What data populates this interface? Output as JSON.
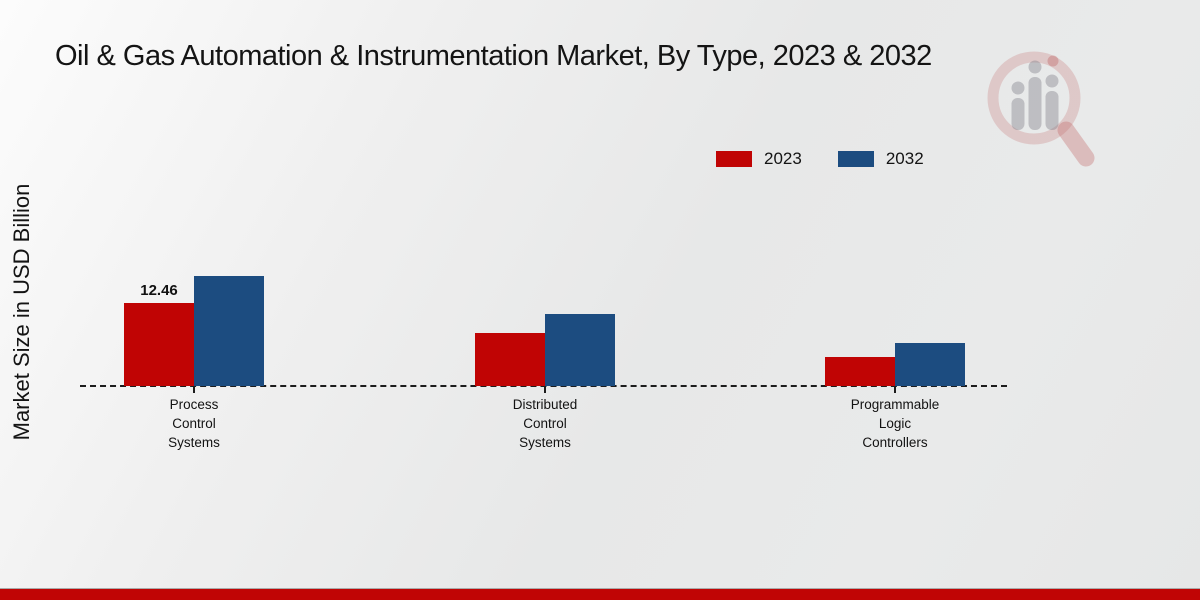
{
  "title": "Oil & Gas Automation & Instrumentation Market, By Type, 2023 & 2032",
  "y_axis_label": "Market Size in USD Billion",
  "chart_data": {
    "type": "bar",
    "categories": [
      "Process Control Systems",
      "Distributed Control Systems",
      "Programmable Logic Controllers"
    ],
    "category_lines": [
      [
        "Process",
        "Control",
        "Systems"
      ],
      [
        "Distributed",
        "Control",
        "Systems"
      ],
      [
        "Programmable",
        "Logic",
        "Controllers"
      ]
    ],
    "series": [
      {
        "name": "2023",
        "color": "#c00404",
        "values": [
          12.46,
          7.9,
          4.4
        ]
      },
      {
        "name": "2032",
        "color": "#1c4c80",
        "values": [
          16.5,
          10.8,
          6.5
        ]
      }
    ],
    "data_labels": [
      {
        "series": 0,
        "index": 0,
        "text": "12.46"
      }
    ],
    "title": "Oil & Gas Automation & Instrumentation Market, By Type, 2023 & 2032",
    "xlabel": "",
    "ylabel": "Market Size in USD Billion",
    "ylim": [
      0,
      18
    ],
    "baseline_style": "dashed",
    "grid": false,
    "legend_position": "top-right"
  },
  "watermark_icon": "magnifier-people-logo",
  "footer": {
    "accent_color": "#c00505"
  }
}
